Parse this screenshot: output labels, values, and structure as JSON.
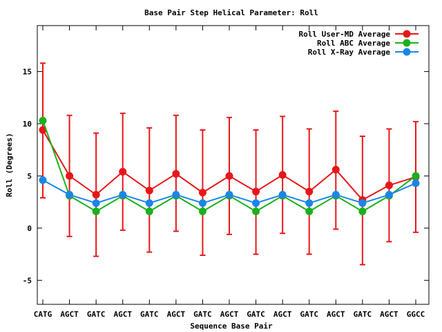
{
  "chart_data": {
    "type": "line",
    "title": "Base Pair Step Helical Parameter: Roll",
    "xlabel": "Sequence Base Pair",
    "ylabel": "Roll (Degrees)",
    "categories": [
      "CATG",
      "AGCT",
      "GATC",
      "AGCT",
      "GATC",
      "AGCT",
      "GATC",
      "AGCT",
      "GATC",
      "AGCT",
      "GATC",
      "AGCT",
      "GATC",
      "AGCT",
      "GGCC"
    ],
    "ylim": [
      -7.3,
      19.4
    ],
    "yticks": [
      -5,
      0,
      5,
      10,
      15
    ],
    "ytick_labels": [
      "-5",
      "0",
      "5",
      "10",
      "15"
    ],
    "grid": false,
    "legend_position": "top-right",
    "series": [
      {
        "name": "Roll User-MD Average",
        "color": "#e8161a",
        "values": [
          9.4,
          5.0,
          3.2,
          5.4,
          3.6,
          5.2,
          3.4,
          5.0,
          3.5,
          5.1,
          3.5,
          5.6,
          2.7,
          4.1,
          4.9
        ],
        "error_low": [
          2.9,
          -0.8,
          -2.7,
          -0.2,
          -2.3,
          -0.3,
          -2.6,
          -0.6,
          -2.5,
          -0.5,
          -2.5,
          -0.1,
          -3.5,
          -1.3,
          -0.4
        ],
        "error_high": [
          15.8,
          10.8,
          9.1,
          11.0,
          9.6,
          10.8,
          9.4,
          10.6,
          9.4,
          10.7,
          9.5,
          11.2,
          8.8,
          9.5,
          10.2
        ]
      },
      {
        "name": "Roll ABC Average",
        "color": "#1cb01c",
        "values": [
          10.3,
          3.1,
          1.6,
          3.1,
          1.6,
          3.1,
          1.6,
          3.1,
          1.6,
          3.1,
          1.6,
          3.1,
          1.6,
          3.1,
          5.0
        ]
      },
      {
        "name": "Roll X-Ray Average",
        "color": "#1a86e8",
        "values": [
          4.6,
          3.2,
          2.4,
          3.2,
          2.4,
          3.2,
          2.4,
          3.2,
          2.4,
          3.2,
          2.4,
          3.2,
          2.4,
          3.2,
          4.3
        ]
      }
    ]
  }
}
